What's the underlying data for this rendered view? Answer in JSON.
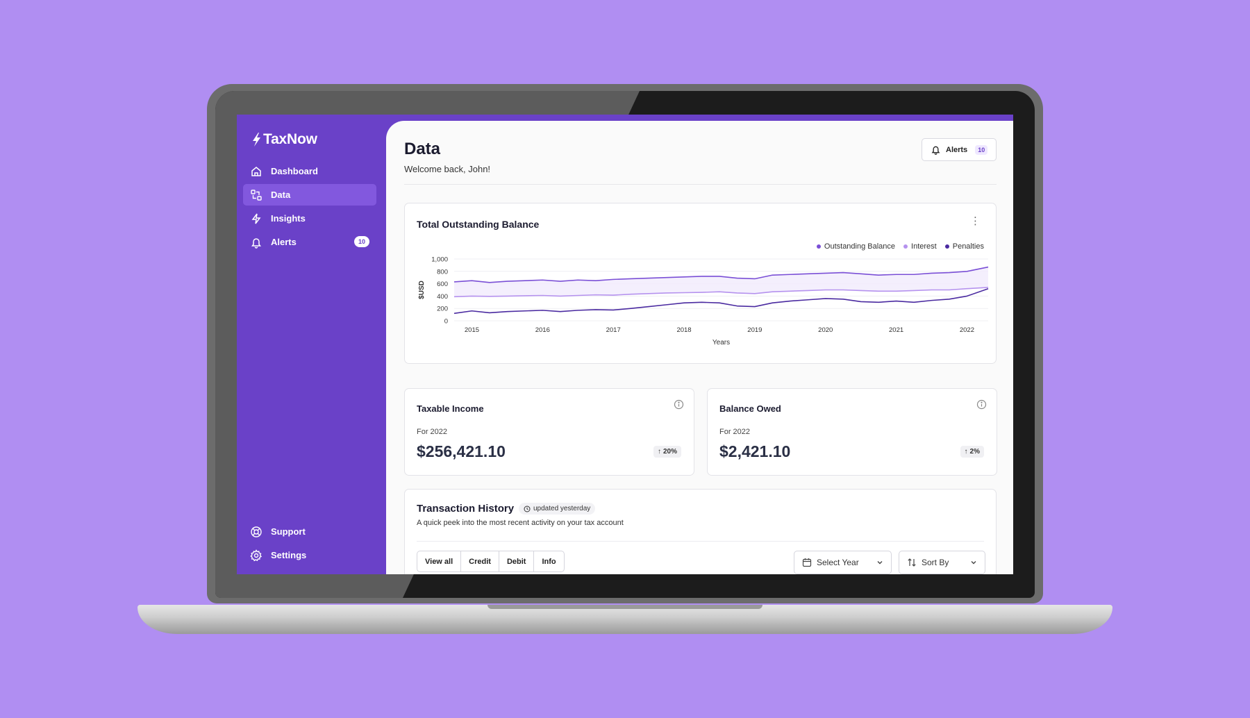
{
  "app": {
    "brand": "TaxNow"
  },
  "sidebar": {
    "items": [
      {
        "label": "Dashboard",
        "icon": "home-icon"
      },
      {
        "label": "Data",
        "icon": "data-icon",
        "active": true
      },
      {
        "label": "Insights",
        "icon": "lightning-icon"
      },
      {
        "label": "Alerts",
        "icon": "bell-icon",
        "badge": "10"
      }
    ],
    "bottom": [
      {
        "label": "Support",
        "icon": "lifebuoy-icon"
      },
      {
        "label": "Settings",
        "icon": "gear-icon"
      }
    ]
  },
  "header": {
    "title": "Data",
    "subtitle": "Welcome back, John!",
    "alerts_label": "Alerts",
    "alerts_count": "10"
  },
  "colors": {
    "accent": "#6a41c8",
    "outstanding": "#7a4fd6",
    "interest": "#b592ee",
    "penalties": "#4a2aa0"
  },
  "chart_data": {
    "type": "line",
    "title": "Total Outstanding Balance",
    "xlabel": "Years",
    "ylabel": "$USD",
    "ylim": [
      0,
      1000
    ],
    "yticks": [
      "0",
      "200",
      "400",
      "600",
      "800",
      "1,000"
    ],
    "xticks": [
      "2015",
      "2016",
      "2017",
      "2018",
      "2019",
      "2020",
      "2021",
      "2022"
    ],
    "x_range": [
      2014.75,
      2022.3
    ],
    "legend_position": "top-right",
    "grid": true,
    "series": [
      {
        "name": "Outstanding Balance",
        "color": "#7a4fd6",
        "x": [
          2014.75,
          2015.0,
          2015.25,
          2015.5,
          2015.75,
          2016.0,
          2016.25,
          2016.5,
          2016.75,
          2017.0,
          2017.25,
          2017.5,
          2017.75,
          2018.0,
          2018.25,
          2018.5,
          2018.75,
          2019.0,
          2019.25,
          2019.5,
          2019.75,
          2020.0,
          2020.25,
          2020.5,
          2020.75,
          2021.0,
          2021.25,
          2021.5,
          2021.75,
          2022.0,
          2022.3
        ],
        "y": [
          630,
          650,
          620,
          640,
          650,
          660,
          640,
          660,
          650,
          670,
          680,
          690,
          700,
          710,
          720,
          720,
          690,
          680,
          740,
          750,
          760,
          770,
          780,
          760,
          740,
          750,
          750,
          770,
          780,
          800,
          870
        ]
      },
      {
        "name": "Interest",
        "color": "#b592ee",
        "x": [
          2014.75,
          2015.0,
          2015.25,
          2015.5,
          2015.75,
          2016.0,
          2016.25,
          2016.5,
          2016.75,
          2017.0,
          2017.25,
          2017.5,
          2017.75,
          2018.0,
          2018.25,
          2018.5,
          2018.75,
          2019.0,
          2019.25,
          2019.5,
          2019.75,
          2020.0,
          2020.25,
          2020.5,
          2020.75,
          2021.0,
          2021.25,
          2021.5,
          2021.75,
          2022.0,
          2022.3
        ],
        "y": [
          390,
          400,
          395,
          400,
          405,
          410,
          400,
          410,
          420,
          415,
          430,
          440,
          450,
          455,
          460,
          470,
          450,
          440,
          470,
          480,
          490,
          500,
          500,
          490,
          480,
          480,
          490,
          500,
          500,
          520,
          540
        ]
      },
      {
        "name": "Penalties",
        "color": "#4a2aa0",
        "x": [
          2014.75,
          2015.0,
          2015.25,
          2015.5,
          2015.75,
          2016.0,
          2016.25,
          2016.5,
          2016.75,
          2017.0,
          2017.25,
          2017.5,
          2017.75,
          2018.0,
          2018.25,
          2018.5,
          2018.75,
          2019.0,
          2019.25,
          2019.5,
          2019.75,
          2020.0,
          2020.25,
          2020.5,
          2020.75,
          2021.0,
          2021.25,
          2021.5,
          2021.75,
          2022.0,
          2022.3
        ],
        "y": [
          120,
          160,
          130,
          150,
          160,
          170,
          150,
          170,
          180,
          175,
          200,
          230,
          260,
          290,
          300,
          290,
          240,
          230,
          290,
          320,
          340,
          360,
          350,
          310,
          300,
          320,
          300,
          330,
          350,
          400,
          520
        ]
      }
    ]
  },
  "stats": [
    {
      "title": "Taxable Income",
      "period": "For 2022",
      "value": "$256,421.10",
      "change": "20%"
    },
    {
      "title": "Balance Owed",
      "period": "For 2022",
      "value": "$2,421.10",
      "change": "2%"
    }
  ],
  "transactions": {
    "title": "Transaction History",
    "updated": "updated yesterday",
    "description": "A quick peek into the most recent activity on your tax account",
    "filters": [
      "View all",
      "Credit",
      "Debit",
      "Info"
    ],
    "select_year": "Select Year",
    "sort_by": "Sort By"
  }
}
